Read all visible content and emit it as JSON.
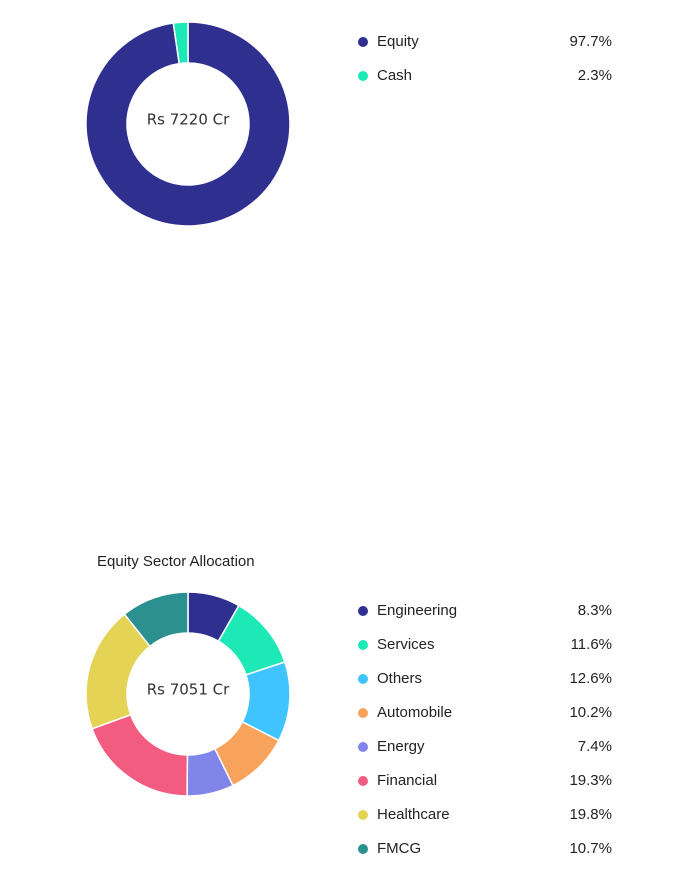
{
  "chart_data": [
    {
      "type": "pie",
      "title": "",
      "center_label": "Rs 7220 Cr",
      "slices": [
        {
          "label": "Equity",
          "value": 97.7,
          "display": "97.7%",
          "color": "#2e2f8f"
        },
        {
          "label": "Cash",
          "value": 2.3,
          "display": "2.3%",
          "color": "#1de9b6"
        }
      ]
    },
    {
      "type": "pie",
      "title": "Equity Sector Allocation",
      "center_label": "Rs 7051 Cr",
      "slices": [
        {
          "label": "Engineering",
          "value": 8.3,
          "display": "8.3%",
          "color": "#2e2f8f"
        },
        {
          "label": "Services",
          "value": 11.6,
          "display": "11.6%",
          "color": "#1de9b6"
        },
        {
          "label": "Others",
          "value": 12.6,
          "display": "12.6%",
          "color": "#40c4ff"
        },
        {
          "label": "Automobile",
          "value": 10.2,
          "display": "10.2%",
          "color": "#f7a35c"
        },
        {
          "label": "Energy",
          "value": 7.4,
          "display": "7.4%",
          "color": "#8085e9"
        },
        {
          "label": "Financial",
          "value": 19.3,
          "display": "19.3%",
          "color": "#f15c80"
        },
        {
          "label": "Healthcare",
          "value": 19.8,
          "display": "19.8%",
          "color": "#e4d354"
        },
        {
          "label": "FMCG",
          "value": 10.7,
          "display": "10.7%",
          "color": "#2b908f"
        }
      ]
    }
  ]
}
